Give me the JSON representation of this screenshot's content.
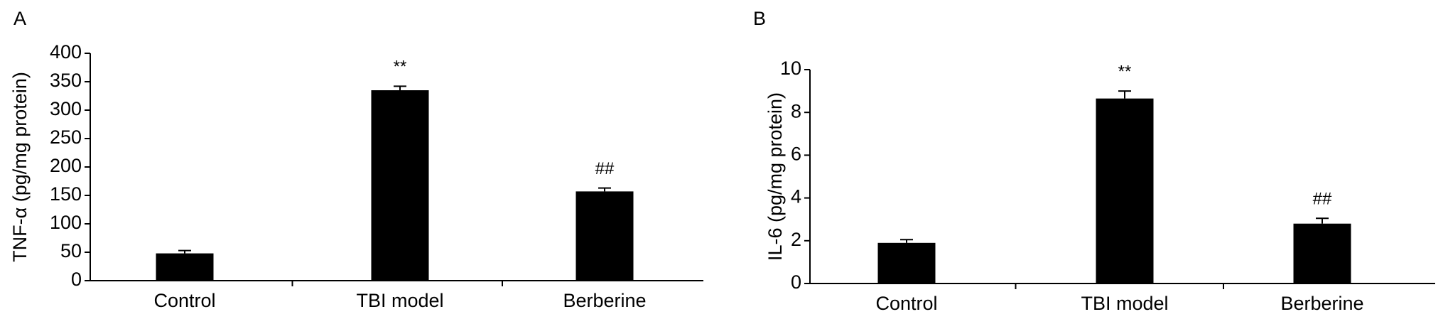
{
  "chart_data": [
    {
      "type": "bar",
      "panel_label": "A",
      "y_label": "TNF-α (pg/mg protein)",
      "categories": [
        "Control",
        "TBI model",
        "Berberine"
      ],
      "values": [
        48,
        335,
        157
      ],
      "errors": [
        5,
        7,
        6
      ],
      "annotations": [
        null,
        "**",
        "##"
      ],
      "color": "#000000",
      "ylim": [
        0,
        400
      ],
      "yticks": [
        0,
        50,
        100,
        150,
        200,
        250,
        300,
        350,
        400
      ]
    },
    {
      "type": "bar",
      "panel_label": "B",
      "y_label": "IL-6 (pg/mg protein)",
      "categories": [
        "Control",
        "TBI model",
        "Berberine"
      ],
      "values": [
        1.9,
        8.65,
        2.8
      ],
      "errors": [
        0.15,
        0.35,
        0.25
      ],
      "annotations": [
        null,
        "**",
        "##"
      ],
      "color": "#000000",
      "ylim": [
        0,
        10
      ],
      "yticks": [
        0,
        2,
        4,
        6,
        8,
        10
      ]
    }
  ]
}
